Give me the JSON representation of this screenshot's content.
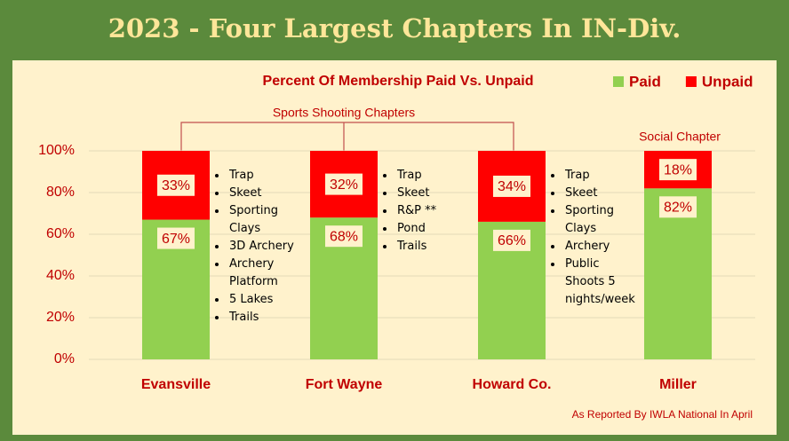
{
  "chart_data": {
    "type": "stacked_bar",
    "title": "2023 - Four Largest Chapters In IN-Div.",
    "subtitle": "Percent Of Membership Paid Vs. Unpaid",
    "categories": [
      "Evansville",
      "Fort Wayne",
      "Howard Co.",
      "Miller"
    ],
    "series": [
      {
        "name": "Paid",
        "color": "#92d050",
        "values": [
          67,
          68,
          66,
          82
        ],
        "value_labels": [
          "67%",
          "68%",
          "66%",
          "82%"
        ]
      },
      {
        "name": "Unpaid",
        "color": "#ff0000",
        "values": [
          33,
          32,
          34,
          18
        ],
        "value_labels": [
          "33%",
          "32%",
          "34%",
          "18%"
        ]
      }
    ],
    "ylim": [
      0,
      100
    ],
    "yticks": [
      {
        "value": 0,
        "label": "0%"
      },
      {
        "value": 20,
        "label": "20%"
      },
      {
        "value": 40,
        "label": "40%"
      },
      {
        "value": 60,
        "label": "60%"
      },
      {
        "value": 80,
        "label": "80%"
      },
      {
        "value": 100,
        "label": "100%"
      }
    ],
    "grid": true,
    "legend": "top-right",
    "annotations": {
      "group_label": "Sports Shooting Chapters",
      "social_label": "Social Chapter",
      "footnote": "As Reported By IWLA National In April",
      "activities": [
        [
          "Trap",
          "Skeet",
          "Sporting Clays",
          "3D Archery",
          "Archery Platform",
          "5 Lakes",
          "Trails"
        ],
        [
          "Trap",
          "Skeet",
          "R&P **",
          "Pond",
          "Trails"
        ],
        [
          "Trap",
          "Skeet",
          "Sporting Clays",
          "Archery",
          "Public Shoots 5 nights/week"
        ]
      ]
    }
  }
}
